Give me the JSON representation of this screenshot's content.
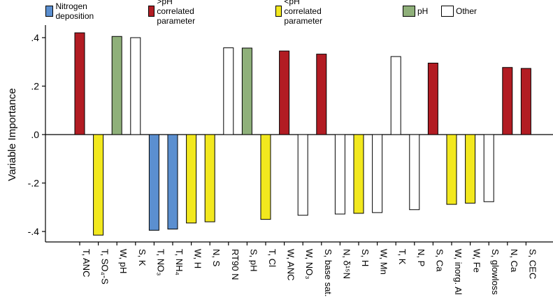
{
  "chart_data": {
    "type": "bar",
    "title": "",
    "xlabel": "",
    "ylabel": "Variable Importance",
    "ylim": [
      -0.45,
      0.45
    ],
    "yticks": [
      0.4,
      0.2,
      0.0,
      -0.2,
      -0.4
    ],
    "ytick_labels": [
      ".4",
      ".2",
      ".0",
      "-.2",
      "-.4"
    ],
    "grid": false,
    "legend_position": "top",
    "legend": [
      {
        "key": "nitrogen",
        "label": "Nitrogen deposition",
        "color": "#5b8fd0"
      },
      {
        "key": "gt_ph",
        "label": ">pH correlated parameter",
        "color": "#b21c23"
      },
      {
        "key": "lt_ph",
        "label": "<pH correlated parameter",
        "color": "#f2e81e"
      },
      {
        "key": "ph",
        "label": "pH",
        "color": "#8fb07a"
      },
      {
        "key": "other",
        "label": "Other",
        "color": "#ffffff"
      }
    ],
    "bars": [
      {
        "label": "T, ANC",
        "value": 0.42,
        "group": "gt_ph"
      },
      {
        "label": "T, SO₄-S",
        "value": -0.415,
        "group": "lt_ph"
      },
      {
        "label": "W, pH",
        "value": 0.405,
        "group": "ph"
      },
      {
        "label": "S, K",
        "value": 0.4,
        "group": "other"
      },
      {
        "label": "T, NO₃",
        "value": -0.395,
        "group": "nitrogen"
      },
      {
        "label": "T, NH₄",
        "value": -0.39,
        "group": "nitrogen"
      },
      {
        "label": "W, H",
        "value": -0.365,
        "group": "lt_ph"
      },
      {
        "label": "N, S",
        "value": -0.36,
        "group": "lt_ph"
      },
      {
        "label": "RT90 N",
        "value": 0.358,
        "group": "other"
      },
      {
        "label": "S, pH",
        "value": 0.357,
        "group": "ph"
      },
      {
        "label": "T, Cl",
        "value": -0.35,
        "group": "lt_ph"
      },
      {
        "label": "W, ANC",
        "value": 0.345,
        "group": "gt_ph"
      },
      {
        "label": "W, NO₃",
        "value": -0.333,
        "group": "other"
      },
      {
        "label": "S, base sat.",
        "value": 0.332,
        "group": "gt_ph"
      },
      {
        "label": "N, δ¹⁵N",
        "value": -0.328,
        "group": "other"
      },
      {
        "label": "S, H",
        "value": -0.325,
        "group": "lt_ph"
      },
      {
        "label": "W, Mn",
        "value": -0.322,
        "group": "other"
      },
      {
        "label": "T, K",
        "value": 0.322,
        "group": "other"
      },
      {
        "label": "N, P",
        "value": -0.31,
        "group": "other"
      },
      {
        "label": "S, Ca",
        "value": 0.295,
        "group": "gt_ph"
      },
      {
        "label": "W, inorg. Al",
        "value": -0.288,
        "group": "lt_ph"
      },
      {
        "label": "W, Fe",
        "value": -0.283,
        "group": "lt_ph"
      },
      {
        "label": "S, glowloss",
        "value": -0.277,
        "group": "other"
      },
      {
        "label": "N, Ca",
        "value": 0.277,
        "group": "gt_ph"
      },
      {
        "label": "S, CEC",
        "value": 0.273,
        "group": "gt_ph"
      }
    ]
  }
}
